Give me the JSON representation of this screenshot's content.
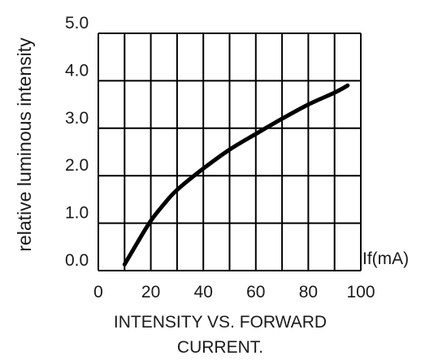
{
  "chart_data": {
    "type": "line",
    "title": [
      "INTENSITY VS. FORWARD",
      "CURRENT."
    ],
    "xlabel": "If(mA)",
    "ylabel": "relative luminous intensity",
    "xlim": [
      0,
      100
    ],
    "ylim": [
      0,
      5
    ],
    "x_ticks": [
      "0",
      "20",
      "40",
      "60",
      "80",
      "100"
    ],
    "y_ticks": [
      "0.0",
      "1.0",
      "2.0",
      "3.0",
      "4.0",
      "5.0"
    ],
    "grid": true,
    "series": [
      {
        "x": [
          10,
          15,
          20,
          25,
          30,
          40,
          50,
          60,
          70,
          80,
          90,
          95
        ],
        "y": [
          0.13,
          0.6,
          1.05,
          1.4,
          1.7,
          2.15,
          2.55,
          2.88,
          3.2,
          3.5,
          3.75,
          3.9
        ]
      }
    ],
    "colors": {
      "grid": "#000000",
      "line": "#000000",
      "text": "#1a1a1a"
    }
  }
}
